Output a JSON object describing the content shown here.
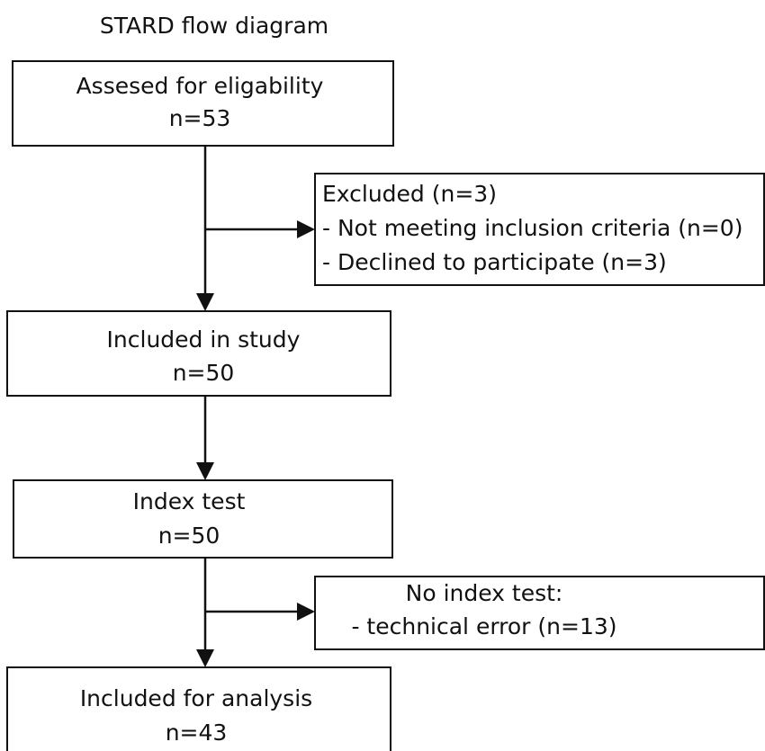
{
  "title": "STARD flow diagram",
  "nodes": [
    {
      "lines": [
        "Assesed for eligability",
        "n=53"
      ]
    },
    {
      "lines": [
        "Excluded (n=3)",
        "- Not meeting inclusion criteria (n=0)",
        "- Declined to participate (n=3)"
      ]
    },
    {
      "lines": [
        "Included in study",
        "n=50"
      ]
    },
    {
      "lines": [
        "Index test",
        "n=50"
      ]
    },
    {
      "lines": [
        "No index test:",
        "- technical error (n=13)"
      ]
    },
    {
      "lines": [
        "Included for analysis",
        "n=43"
      ]
    }
  ]
}
